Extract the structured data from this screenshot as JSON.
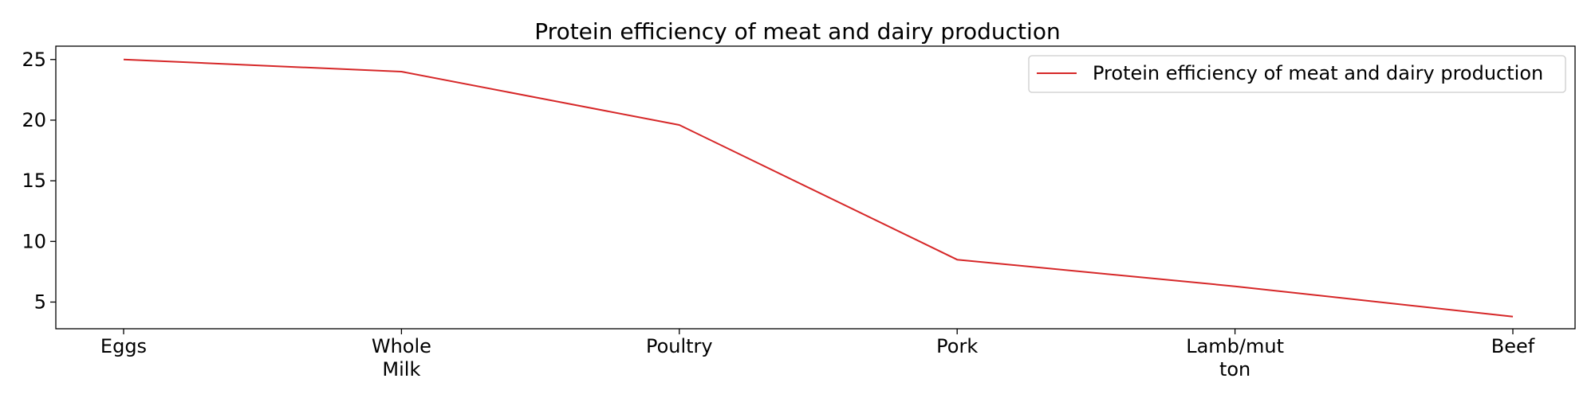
{
  "chart_data": {
    "type": "line",
    "title": "Protein efficiency of meat and dairy production",
    "xlabel": "",
    "ylabel": "",
    "categories": [
      [
        "Eggs"
      ],
      [
        "Whole",
        "Milk"
      ],
      [
        "Poultry"
      ],
      [
        "Pork"
      ],
      [
        "Lamb/mut",
        "ton"
      ],
      [
        "Beef"
      ]
    ],
    "series": [
      {
        "name": "Protein efficiency of meat and dairy production",
        "values": [
          25.0,
          24.0,
          19.6,
          8.5,
          6.3,
          3.8
        ],
        "color": "#d62728"
      }
    ],
    "ylim": [
      2.8,
      26.1
    ],
    "yticks": [
      5,
      10,
      15,
      20,
      25
    ],
    "grid": false,
    "legend": "top-right"
  }
}
